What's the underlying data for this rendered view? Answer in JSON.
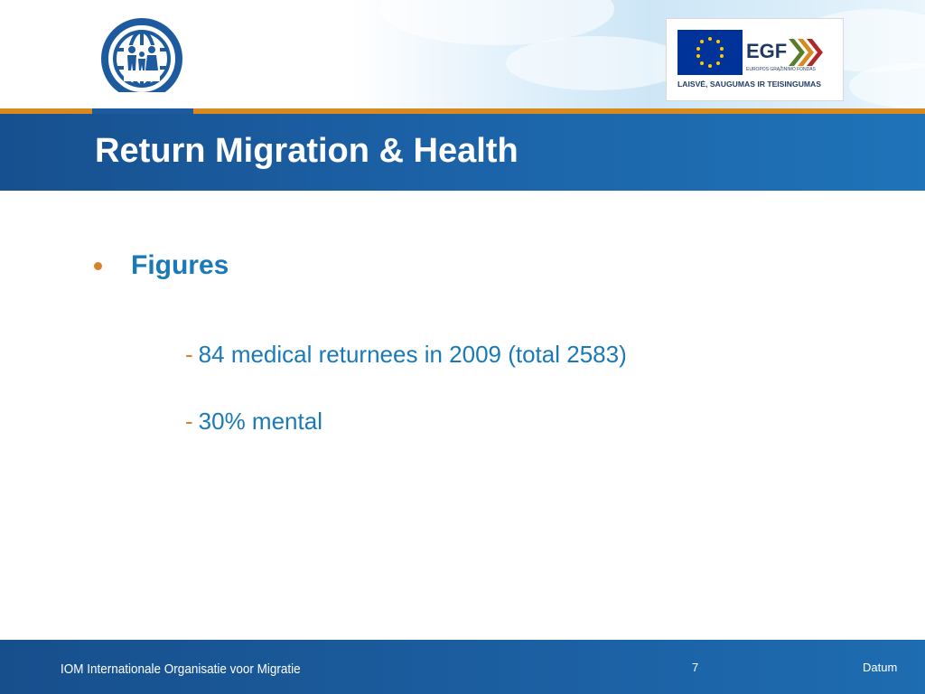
{
  "header": {
    "title": "Return Migration & Health",
    "egf_logo": {
      "mark": "EGF",
      "fund_name": "EUROPOS GRĄŽINIMO FONDAS",
      "tagline": "LAISVĖ, SAUGUMAS IR TEISINGUMAS"
    },
    "iom_logo_icon": "iom-globe-family-icon"
  },
  "content": {
    "bullet": {
      "label": "Figures",
      "items": [
        {
          "dash": "-",
          "text": "84 medical returnees in 2009 (total 2583)"
        },
        {
          "dash": "-",
          "text": "30% mental"
        }
      ]
    }
  },
  "footer": {
    "organization": "IOM Internationale Organisatie voor Migratie",
    "page_number": "7",
    "date_placeholder": "Datum"
  },
  "colors": {
    "brand_blue": "#1c63a8",
    "accent_orange": "#d9822b",
    "text_blue": "#1a7ab8",
    "eu_blue": "#003399",
    "eu_yellow": "#ffcc00"
  }
}
